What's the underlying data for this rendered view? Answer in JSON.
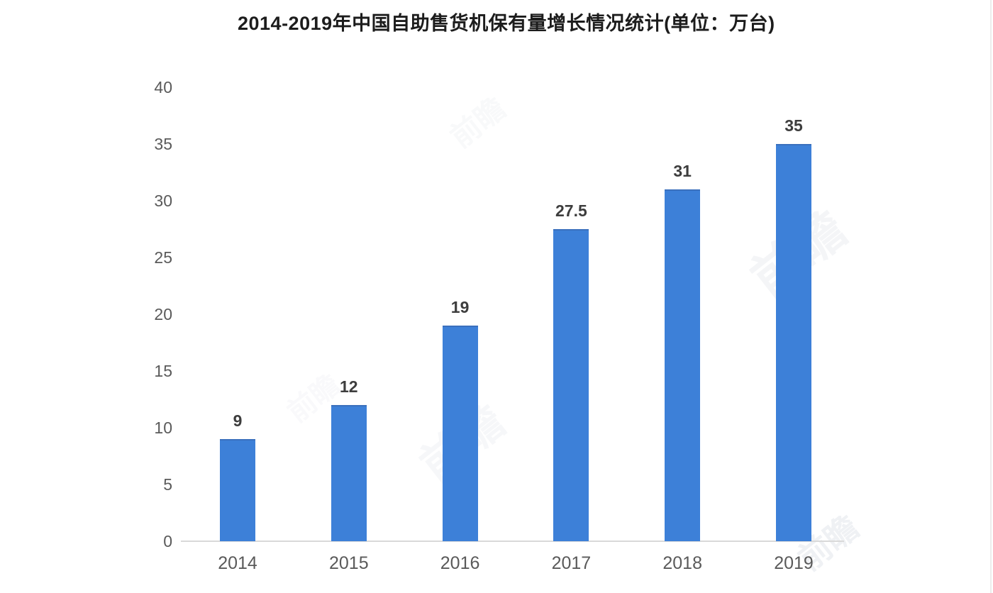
{
  "page": {
    "background": "#ffffff"
  },
  "chart_data": {
    "type": "bar",
    "title": "2014-2019年中国自助售货机保有量增长情况统计(单位：万台)",
    "categories": [
      "2014",
      "2015",
      "2016",
      "2017",
      "2018",
      "2019"
    ],
    "values": [
      9,
      12,
      19,
      27.5,
      31,
      35
    ],
    "value_labels": [
      "9",
      "12",
      "19",
      "27.5",
      "31",
      "35"
    ],
    "xlabel": "",
    "ylabel": "",
    "ylim": [
      0,
      40
    ],
    "yticks": [
      0,
      5,
      10,
      15,
      20,
      25,
      30,
      35,
      40
    ],
    "grid": false,
    "legend": "none",
    "bar_color": "#3d80d8",
    "bar_edge_color": "#3a70bd",
    "axis_line_color": "#d9d9d9",
    "tick_label_color": "#5a5a5a",
    "value_label_color": "#3d3d3d",
    "title_color": "#1c1c1c"
  },
  "watermark": {
    "text": "前瞻"
  }
}
